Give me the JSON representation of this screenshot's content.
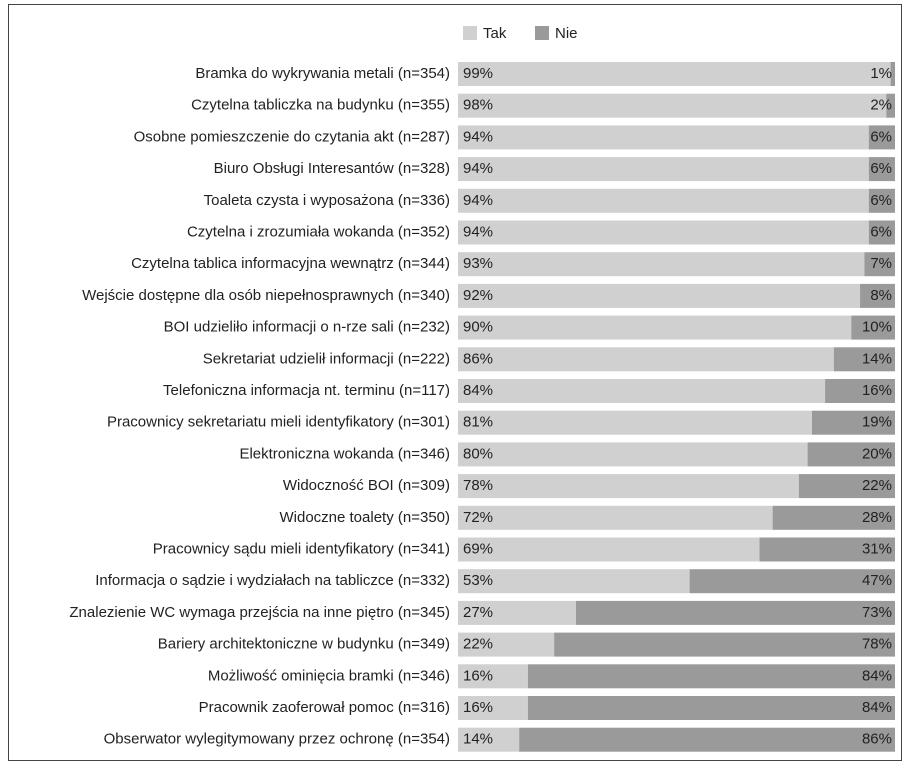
{
  "chart_data": {
    "type": "stacked-bar-horizontal",
    "categories": [
      "Bramka do wykrywania metali (n=354)",
      "Czytelna tabliczka na budynku (n=355)",
      "Osobne pomieszczenie do czytania akt (n=287)",
      "Biuro Obsługi Interesantów (n=328)",
      "Toaleta czysta i wyposażona (n=336)",
      "Czytelna i zrozumiała wokanda (n=352)",
      "Czytelna tablica informacyjna wewnątrz (n=344)",
      "Wejście dostępne dla osób niepełnosprawnych (n=340)",
      "BOI udzieliło informacji o n-rze sali (n=232)",
      "Sekretariat udzielił informacji (n=222)",
      "Telefoniczna informacja nt. terminu (n=117)",
      "Pracownicy sekretariatu mieli identyfikatory (n=301)",
      "Elektroniczna wokanda (n=346)",
      "Widoczność BOI (n=309)",
      "Widoczne toalety (n=350)",
      "Pracownicy sądu mieli identyfikatory (n=341)",
      "Informacja o sądzie i wydziałach na tabliczce (n=332)",
      "Znalezienie WC wymaga przejścia na inne piętro (n=345)",
      "Bariery architektoniczne w budynku (n=349)",
      "Możliwość ominięcia bramki (n=346)",
      "Pracownik zaoferował pomoc (n=316)",
      "Obserwator wylegitymowany przez ochronę (n=354)"
    ],
    "xlim": [
      0,
      100
    ],
    "series": [
      {
        "name": "Tak",
        "color": "#d0d0d0",
        "values": [
          99,
          98,
          94,
          94,
          94,
          94,
          93,
          92,
          90,
          86,
          84,
          81,
          80,
          78,
          72,
          69,
          53,
          27,
          22,
          16,
          16,
          14
        ],
        "value_labels": [
          "99%",
          "98%",
          "94%",
          "94%",
          "94%",
          "94%",
          "93%",
          "92%",
          "90%",
          "86%",
          "84%",
          "81%",
          "80%",
          "78%",
          "72%",
          "69%",
          "53%",
          "27%",
          "22%",
          "16%",
          "16%",
          "14%"
        ]
      },
      {
        "name": "Nie",
        "color": "#9a9a9a",
        "values": [
          1,
          2,
          6,
          6,
          6,
          6,
          7,
          8,
          10,
          14,
          16,
          19,
          20,
          22,
          28,
          31,
          47,
          73,
          78,
          84,
          84,
          86
        ],
        "value_labels": [
          "1%",
          "2%",
          "6%",
          "6%",
          "6%",
          "6%",
          "7%",
          "8%",
          "10%",
          "14%",
          "16%",
          "19%",
          "20%",
          "22%",
          "28%",
          "31%",
          "47%",
          "73%",
          "78%",
          "84%",
          "84%",
          "86%"
        ]
      }
    ]
  }
}
